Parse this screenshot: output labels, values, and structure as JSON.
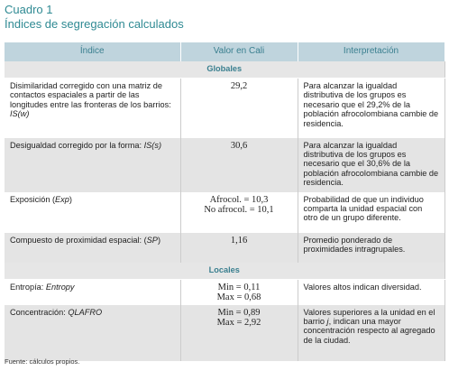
{
  "header": {
    "label": "Cuadro 1",
    "title": "Índices de segregación calculados"
  },
  "table": {
    "columns": [
      "Índice",
      "Valor en Cali",
      "Interpretación"
    ],
    "sections": [
      {
        "title": "Globales",
        "rows": [
          {
            "indice": {
              "text": "Disimilaridad corregido con una matriz de contactos espaciales a partir de las longitudes entre las fronteras de los barrios: ",
              "symbol": "IS(w)"
            },
            "valor": [
              "29,2"
            ],
            "interpretacion": {
              "text": "Para alcanzar la igualdad distributiva de los grupos es necesario que el 29,2% de la población afrocolombiana cambie de residencia."
            }
          },
          {
            "indice": {
              "text": "Desigualdad corregido por la forma: ",
              "symbol": "IS(s)"
            },
            "valor": [
              "30,6"
            ],
            "interpretacion": {
              "text": "Para alcanzar la igualdad distributiva de los grupos es necesario que el 30,6% de la población afrocolombiana cambie de residencia."
            }
          },
          {
            "indice": {
              "text": "Exposición (",
              "symbol": "Exp",
              "after": ")"
            },
            "valor": [
              "Afrocol. = 10,3",
              "No afrocol. = 10,1"
            ],
            "interpretacion": {
              "text": "Probabilidad de que un individuo comparta la unidad espacial con otro de un grupo diferente."
            }
          },
          {
            "indice": {
              "text": "Compuesto de proximidad espacial: (",
              "symbol": "SP",
              "after": ")"
            },
            "valor": [
              "1,16"
            ],
            "interpretacion": {
              "text": "Promedio ponderado de proximidades intragrupales."
            }
          }
        ]
      },
      {
        "title": "Locales",
        "rows": [
          {
            "indice": {
              "text": "Entropía: ",
              "symbol": "Entropy"
            },
            "valor": [
              "Min = 0,11",
              "Max = 0,68"
            ],
            "interpretacion": {
              "text": "Valores altos indican diversidad."
            }
          },
          {
            "indice": {
              "text": "Concentración: ",
              "symbol": "QLAFRO"
            },
            "valor": [
              "Min = 0,89",
              "Max = 2,92"
            ],
            "interpretacion": {
              "text": "Valores superiores a la unidad en el barrio ",
              "symbol": "j",
              "after": ", indican una mayor concentración respecto al agregado de la ciudad."
            }
          }
        ]
      }
    ]
  },
  "footer": "Fuente: cálculos propios."
}
